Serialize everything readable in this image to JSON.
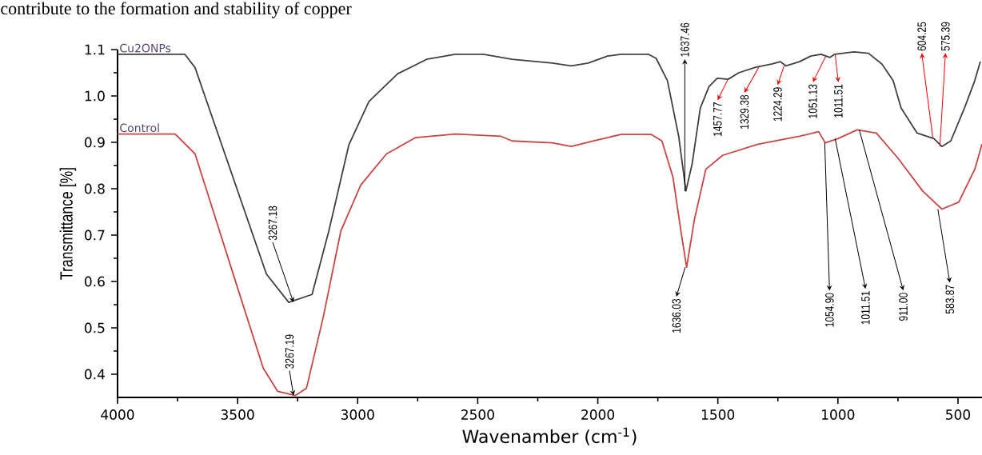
{
  "chart_data": {
    "type": "line",
    "xlabel": "Wavenamber (cm$^{-1}$)",
    "ylabel": "Transmittance [%]",
    "xlim": [
      4000,
      400
    ],
    "ylim": [
      0.35,
      1.1
    ],
    "xticks": [
      4000,
      3500,
      3000,
      2500,
      2000,
      1500,
      1000,
      500
    ],
    "yticks": [
      0.4,
      0.5,
      0.6,
      0.7,
      0.8,
      0.9,
      {
        "value": 1.0,
        "label": "1.0"
      },
      1.1
    ],
    "series": [
      {
        "name": "Cu2ONPs",
        "color": "#404040",
        "x": [
          4000,
          3720,
          3677,
          3380,
          3287,
          3190,
          3120,
          3037,
          2953,
          2833,
          2713,
          2593,
          2477,
          2357,
          2190,
          2110,
          2040,
          1960,
          1903,
          1790,
          1757,
          1710,
          1663,
          1633,
          1607,
          1573,
          1537,
          1503,
          1457,
          1413,
          1343,
          1273,
          1240,
          1217,
          1160,
          1113,
          1070,
          1033,
          1013,
          933,
          873,
          817,
          770,
          737,
          670,
          600,
          567,
          530,
          473,
          430,
          407
        ],
        "values": [
          1.09,
          1.09,
          1.061,
          0.616,
          0.555,
          0.572,
          0.709,
          0.894,
          0.988,
          1.048,
          1.079,
          1.09,
          1.09,
          1.079,
          1.071,
          1.065,
          1.071,
          1.086,
          1.09,
          1.09,
          1.081,
          1.033,
          0.913,
          0.795,
          0.854,
          0.974,
          1.02,
          1.038,
          1.036,
          1.05,
          1.062,
          1.069,
          1.074,
          1.065,
          1.074,
          1.086,
          1.09,
          1.083,
          1.09,
          1.095,
          1.092,
          1.069,
          1.033,
          0.974,
          0.92,
          0.908,
          0.891,
          0.903,
          0.974,
          1.033,
          1.074
        ]
      },
      {
        "name": "Control",
        "color": "#cc4444",
        "x": [
          4000,
          3760,
          3677,
          3500,
          3393,
          3333,
          3260,
          3213,
          3143,
          3070,
          2987,
          2880,
          2760,
          2593,
          2403,
          2357,
          2190,
          2110,
          2020,
          1903,
          1777,
          1733,
          1687,
          1653,
          1630,
          1597,
          1550,
          1480,
          1333,
          1160,
          1080,
          1053,
          1000,
          920,
          840,
          750,
          647,
          567,
          497,
          430,
          400
        ],
        "values": [
          0.918,
          0.918,
          0.875,
          0.586,
          0.413,
          0.363,
          0.354,
          0.37,
          0.524,
          0.709,
          0.808,
          0.875,
          0.91,
          0.918,
          0.913,
          0.903,
          0.899,
          0.891,
          0.903,
          0.917,
          0.917,
          0.903,
          0.825,
          0.706,
          0.631,
          0.735,
          0.842,
          0.872,
          0.896,
          0.913,
          0.923,
          0.899,
          0.908,
          0.927,
          0.92,
          0.866,
          0.795,
          0.756,
          0.771,
          0.842,
          0.896
        ]
      }
    ],
    "annotations": [
      "contribute to the formation and stability of copper",
      {
        "text": "3267.18",
        "x": 3267.18,
        "y": 0.555
      },
      {
        "text": "3267.19",
        "x": 3267.19,
        "y": 0.354
      },
      {
        "text": "1637.46",
        "x": 1637.46,
        "y": 0.795
      },
      {
        "text": "1636.03",
        "x": 1636.03,
        "y": 0.631
      },
      {
        "text": "1457.77",
        "x": 1457.77,
        "y": 1.036
      },
      {
        "text": "1329.38",
        "x": 1329.38,
        "y": 1.062
      },
      {
        "text": "1224.29",
        "x": 1224.29,
        "y": 1.065
      },
      {
        "text": "1051.13",
        "x": 1051.13,
        "y": 1.085
      },
      {
        "text": "1011.51",
        "x": 1011.51,
        "y": 1.09
      },
      {
        "text": "604.25",
        "x": 604.25,
        "y": 0.908
      },
      {
        "text": "575.39",
        "x": 575.39,
        "y": 0.891
      },
      {
        "text": "1054.90",
        "x": 1054.9,
        "y": 0.899
      },
      {
        "text": "1011.51",
        "x": 1011.51,
        "y": 0.908
      },
      {
        "text": "911.00",
        "x": 911.0,
        "y": 0.927
      },
      {
        "text": "583.87",
        "x": 583.87,
        "y": 0.756
      }
    ]
  }
}
